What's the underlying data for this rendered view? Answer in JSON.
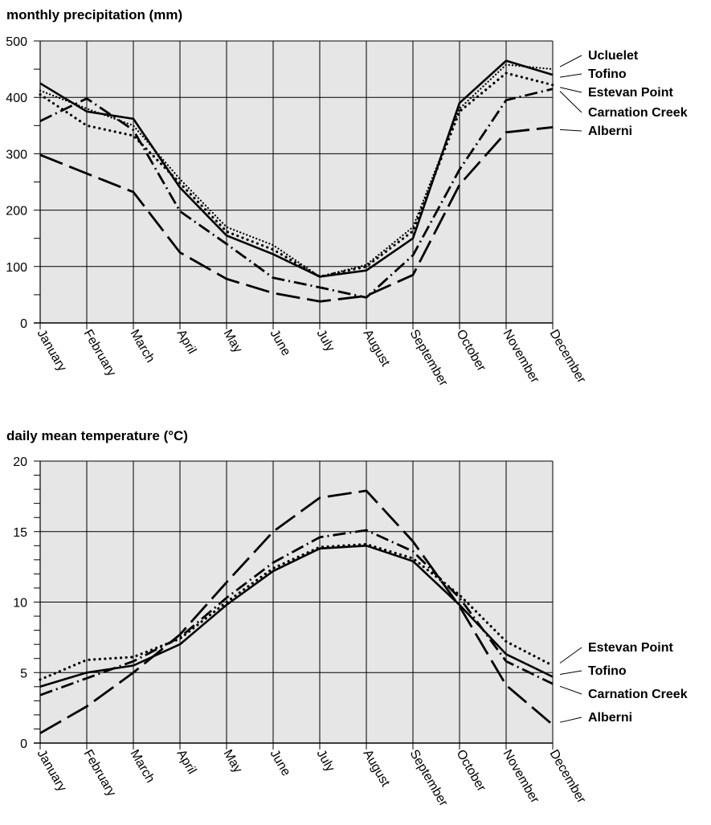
{
  "chart_data": [
    {
      "type": "line",
      "title": "monthly precipitation (mm)",
      "categories": [
        "January",
        "February",
        "March",
        "April",
        "May",
        "June",
        "July",
        "August",
        "September",
        "October",
        "November",
        "December"
      ],
      "ylim": [
        0,
        500
      ],
      "yticks": [
        "0",
        "100",
        "200",
        "300",
        "400",
        "500"
      ],
      "grid": true,
      "legend_placement": "right",
      "series": [
        {
          "name": "Ucluelet",
          "style": "dotted-thin",
          "values": [
            412,
            380,
            350,
            255,
            170,
            138,
            82,
            103,
            170,
            380,
            458,
            450
          ]
        },
        {
          "name": "Tofino",
          "style": "solid",
          "values": [
            425,
            375,
            362,
            240,
            155,
            122,
            82,
            93,
            150,
            390,
            465,
            440
          ]
        },
        {
          "name": "Estevan Point",
          "style": "dotted",
          "values": [
            405,
            350,
            332,
            248,
            162,
            130,
            82,
            100,
            163,
            375,
            443,
            422
          ]
        },
        {
          "name": "Carnation Creek",
          "style": "dash-dot",
          "values": [
            358,
            398,
            342,
            198,
            140,
            80,
            63,
            45,
            120,
            272,
            395,
            415
          ]
        },
        {
          "name": "Alberni",
          "style": "long-dash",
          "values": [
            298,
            265,
            232,
            125,
            78,
            53,
            38,
            48,
            85,
            245,
            338,
            347
          ]
        }
      ]
    },
    {
      "type": "line",
      "title": "daily mean temperature (°C)",
      "categories": [
        "January",
        "February",
        "March",
        "April",
        "May",
        "June",
        "July",
        "August",
        "September",
        "October",
        "November",
        "December"
      ],
      "ylim": [
        0,
        20
      ],
      "yticks": [
        "0",
        "5",
        "10",
        "15",
        "20"
      ],
      "grid": true,
      "legend_placement": "right",
      "series": [
        {
          "name": "Estevan Point",
          "style": "dotted",
          "values": [
            4.5,
            5.9,
            6.1,
            7.4,
            10.0,
            12.4,
            13.9,
            14.1,
            13.1,
            10.5,
            7.2,
            5.5
          ]
        },
        {
          "name": "Tofino",
          "style": "solid",
          "values": [
            4.0,
            5.0,
            5.5,
            7.0,
            9.8,
            12.2,
            13.8,
            14.0,
            12.9,
            9.8,
            6.3,
            4.7
          ]
        },
        {
          "name": "Carnation Creek",
          "style": "dash-dot",
          "values": [
            3.4,
            4.6,
            5.8,
            7.5,
            10.3,
            12.8,
            14.6,
            15.1,
            13.6,
            10.3,
            5.8,
            4.2
          ]
        },
        {
          "name": "Alberni",
          "style": "long-dash",
          "values": [
            0.7,
            2.6,
            5.0,
            7.7,
            11.4,
            15.0,
            17.4,
            17.9,
            14.3,
            9.7,
            4.1,
            1.3
          ]
        }
      ]
    }
  ]
}
